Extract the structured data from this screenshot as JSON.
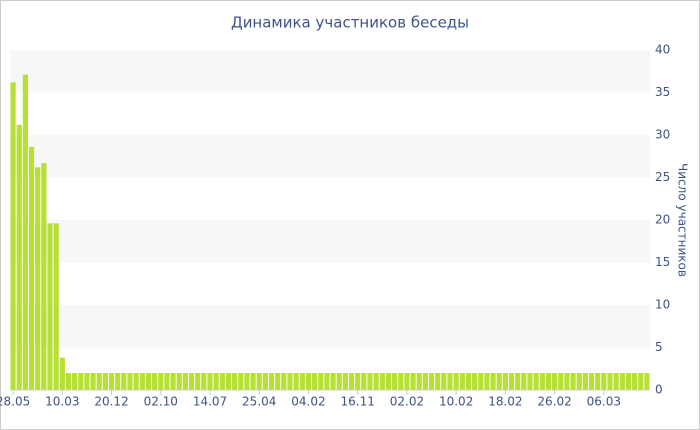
{
  "chart_data": {
    "type": "bar",
    "title": "Динамика участников беседы",
    "y_label": "Число участников",
    "categories": [
      "28.05",
      null,
      null,
      null,
      null,
      null,
      null,
      null,
      "10.03",
      null,
      null,
      null,
      null,
      null,
      null,
      null,
      "20.12",
      null,
      null,
      null,
      null,
      null,
      null,
      null,
      "02.10",
      null,
      null,
      null,
      null,
      null,
      null,
      null,
      "14.07",
      null,
      null,
      null,
      null,
      null,
      null,
      null,
      "25.04",
      null,
      null,
      null,
      null,
      null,
      null,
      null,
      "04.02",
      null,
      null,
      null,
      null,
      null,
      null,
      null,
      "16.11",
      null,
      null,
      null,
      null,
      null,
      null,
      null,
      "02.02",
      null,
      null,
      null,
      null,
      null,
      null,
      null,
      "10.02",
      null,
      null,
      null,
      null,
      null,
      null,
      null,
      "18.02",
      null,
      null,
      null,
      null,
      null,
      null,
      null,
      "26.02",
      null,
      null,
      null,
      null,
      null,
      null,
      null,
      "06.03",
      null,
      null,
      null,
      null,
      null,
      null,
      null
    ],
    "values": [
      36.2,
      31.2,
      37.1,
      28.6,
      26.2,
      26.7,
      19.6,
      19.6,
      3.8,
      2,
      2,
      2,
      2,
      2,
      2,
      2,
      2,
      2,
      2,
      2,
      2,
      2,
      2,
      2,
      2,
      2,
      2,
      2,
      2,
      2,
      2,
      2,
      2,
      2,
      2,
      2,
      2,
      2,
      2,
      2,
      2,
      2,
      2,
      2,
      2,
      2,
      2,
      2,
      2,
      2,
      2,
      2,
      2,
      2,
      2,
      2,
      2,
      2,
      2,
      2,
      2,
      2,
      2,
      2,
      2,
      2,
      2,
      2,
      2,
      2,
      2,
      2,
      2,
      2,
      2,
      2,
      2,
      2,
      2,
      2,
      2,
      2,
      2,
      2,
      2,
      2,
      2,
      2,
      2,
      2,
      2,
      2,
      2,
      2,
      2,
      2,
      2,
      2,
      2,
      2,
      2,
      2,
      2,
      2
    ],
    "color": "#b6e034",
    "ylim": [
      0,
      40
    ],
    "yticks": [
      0,
      5,
      10,
      15,
      20,
      25,
      30,
      35,
      40
    ],
    "grid": true,
    "y_axis_side": "right"
  }
}
